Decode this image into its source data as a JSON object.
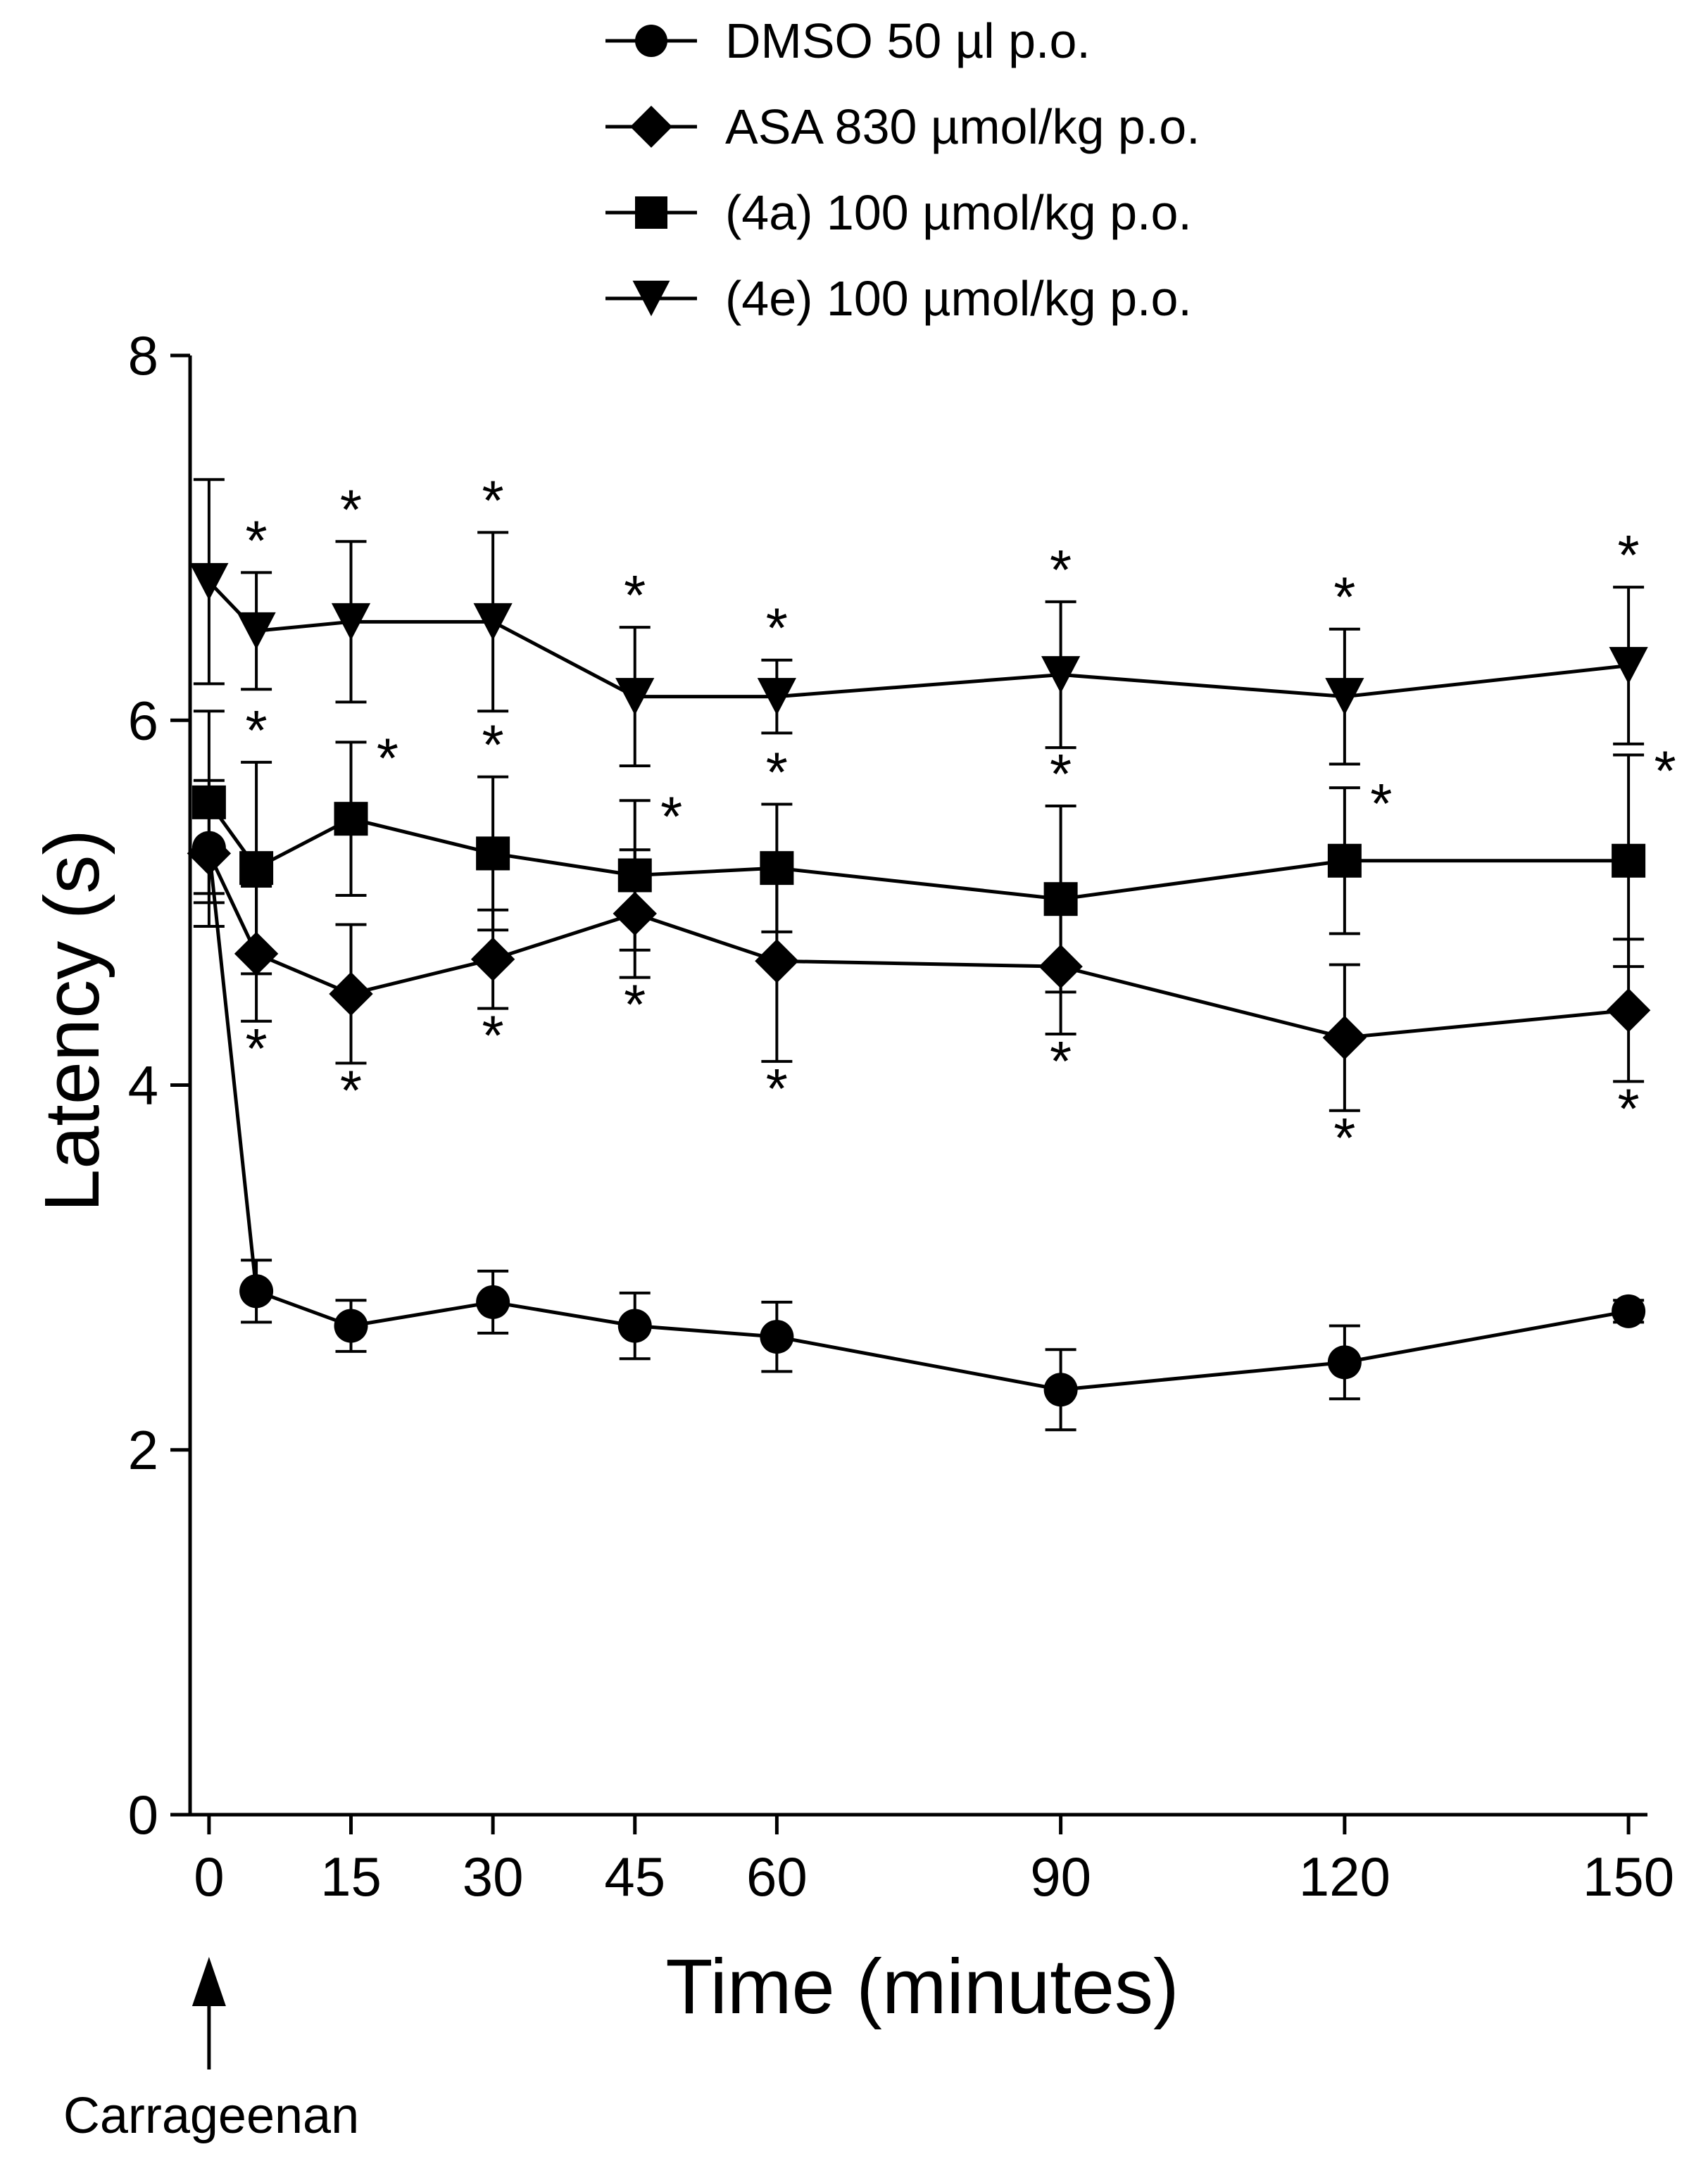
{
  "chart_data": {
    "type": "line",
    "title": "",
    "xlabel": "Time (minutes)",
    "ylabel": "Latency (s)",
    "x": [
      0,
      5,
      15,
      30,
      45,
      60,
      90,
      120,
      150
    ],
    "xticks": [
      0,
      15,
      30,
      45,
      60,
      90,
      120,
      150
    ],
    "xtick_labels": [
      "0",
      "15",
      "30",
      "45",
      "60",
      "90",
      "120",
      "150"
    ],
    "xlim": [
      -2,
      152
    ],
    "ylim": [
      0,
      8
    ],
    "yticks": [
      0,
      2,
      4,
      6,
      8
    ],
    "ytick_labels": [
      "0",
      "2",
      "4",
      "6",
      "8"
    ],
    "grid": false,
    "legend_position": "top",
    "annotation": "Carrageenan",
    "annotation_x": 0,
    "significance_marker": "*",
    "series": [
      {
        "name": "DMSO 50 µl p.o.",
        "marker": "circle",
        "values": [
          5.3,
          2.87,
          2.68,
          2.81,
          2.68,
          2.62,
          2.33,
          2.48,
          2.76
        ],
        "errors": [
          0.3,
          0.17,
          0.14,
          0.17,
          0.18,
          0.19,
          0.22,
          0.2,
          0.06
        ],
        "stars": []
      },
      {
        "name": "ASA 830 µmol/kg p.o.",
        "marker": "diamond",
        "values": [
          5.27,
          4.72,
          4.5,
          4.69,
          4.94,
          4.68,
          4.65,
          4.26,
          4.41
        ],
        "errors": [
          0.4,
          0.37,
          0.38,
          0.27,
          0.35,
          0.55,
          0.37,
          0.4,
          0.39
        ],
        "stars": [
          {
            "x": 5,
            "pos": "below"
          },
          {
            "x": 15,
            "pos": "below"
          },
          {
            "x": 30,
            "pos": "below"
          },
          {
            "x": 45,
            "pos": "below"
          },
          {
            "x": 60,
            "pos": "below"
          },
          {
            "x": 90,
            "pos": "below"
          },
          {
            "x": 120,
            "pos": "below"
          },
          {
            "x": 150,
            "pos": "below"
          }
        ]
      },
      {
        "name": "(4a) 100 µmol/kg p.o.",
        "marker": "square",
        "values": [
          5.55,
          5.19,
          5.46,
          5.27,
          5.15,
          5.19,
          5.02,
          5.23,
          5.23
        ],
        "errors": [
          0.5,
          0.58,
          0.42,
          0.42,
          0.41,
          0.35,
          0.51,
          0.4,
          0.58
        ],
        "stars": [
          {
            "x": 5,
            "pos": "above"
          },
          {
            "x": 15,
            "pos": "right"
          },
          {
            "x": 30,
            "pos": "above"
          },
          {
            "x": 45,
            "pos": "right"
          },
          {
            "x": 60,
            "pos": "above"
          },
          {
            "x": 90,
            "pos": "above"
          },
          {
            "x": 120,
            "pos": "right"
          },
          {
            "x": 150,
            "pos": "right"
          }
        ]
      },
      {
        "name": "(4e) 100 µmol/kg p.o.",
        "marker": "triangle-down",
        "values": [
          6.76,
          6.49,
          6.54,
          6.54,
          6.13,
          6.13,
          6.25,
          6.13,
          6.3
        ],
        "errors": [
          0.56,
          0.32,
          0.44,
          0.49,
          0.38,
          0.2,
          0.4,
          0.37,
          0.43
        ],
        "stars": [
          {
            "x": 5,
            "pos": "above"
          },
          {
            "x": 15,
            "pos": "above"
          },
          {
            "x": 30,
            "pos": "above"
          },
          {
            "x": 45,
            "pos": "above"
          },
          {
            "x": 60,
            "pos": "above"
          },
          {
            "x": 90,
            "pos": "above"
          },
          {
            "x": 120,
            "pos": "above"
          },
          {
            "x": 150,
            "pos": "above"
          }
        ]
      }
    ]
  }
}
